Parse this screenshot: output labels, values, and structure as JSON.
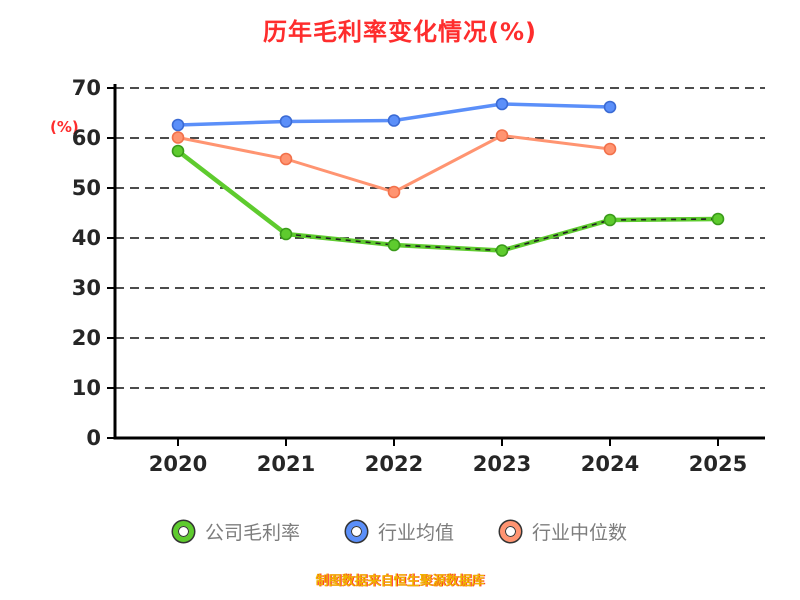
{
  "chart_data": {
    "type": "line",
    "title": "历年毛利率变化情况(%)",
    "title_color": "#fe2d2d",
    "ylabel": "(%)",
    "x": [
      "2020",
      "2021",
      "2022",
      "2023",
      "2024",
      "2025"
    ],
    "ylim": [
      0,
      70
    ],
    "yticks": [
      0,
      10,
      20,
      30,
      40,
      50,
      60,
      70
    ],
    "grid": "dashed-horizontal",
    "legend_position": "bottom",
    "series": [
      {
        "name": "公司毛利率",
        "color": "#5ecb2e",
        "edge_color": "#3a9b1a",
        "line_width": 4.5,
        "dash_overlay": true,
        "values": [
          57.4,
          40.8,
          38.6,
          37.5,
          43.6,
          43.8
        ]
      },
      {
        "name": "行业均值",
        "color": "#5b8ff9",
        "edge_color": "#3a6ad4",
        "line_width": 3.5,
        "dash_overlay": false,
        "values": [
          62.6,
          63.3,
          63.5,
          66.8,
          66.2,
          null
        ]
      },
      {
        "name": "行业中位数",
        "color": "#ff9471",
        "edge_color": "#f2714b",
        "line_width": 3,
        "dash_overlay": false,
        "values": [
          60.1,
          55.8,
          49.2,
          60.5,
          57.8,
          null
        ]
      }
    ],
    "footer": "制图数据来自恒生聚源数据库",
    "footer_color": "#f0b400"
  }
}
